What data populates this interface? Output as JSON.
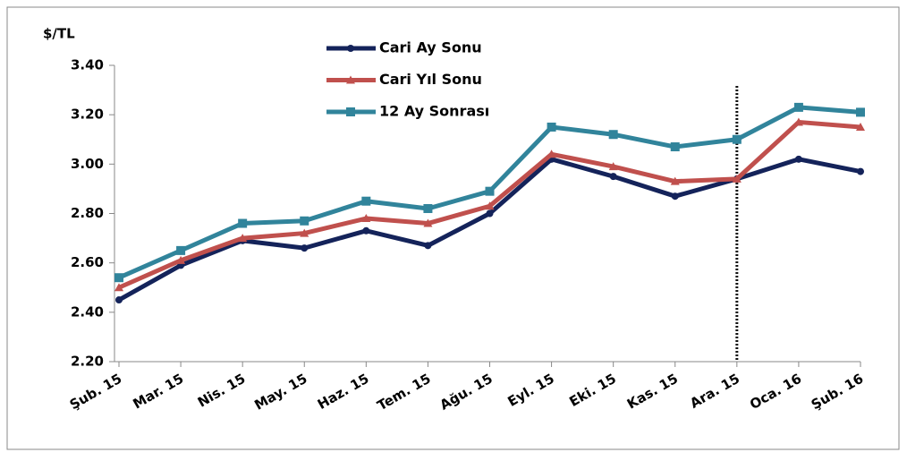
{
  "chart_data": {
    "type": "line",
    "y_label": "$/TL",
    "categories": [
      "Şub. 15",
      "Mar. 15",
      "Nis. 15",
      "May. 15",
      "Haz. 15",
      "Tem. 15",
      "Ağu. 15",
      "Eyl. 15",
      "Eki. 15",
      "Kas. 15",
      "Ara. 15",
      "Oca. 16",
      "Şub. 16"
    ],
    "series": [
      {
        "name": "Cari Ay Sonu",
        "color": "#14235a",
        "marker": "circle",
        "values": [
          2.45,
          2.59,
          2.69,
          2.66,
          2.73,
          2.67,
          2.8,
          3.02,
          2.95,
          2.87,
          2.94,
          3.02,
          2.97
        ]
      },
      {
        "name": "Cari Yıl Sonu",
        "color": "#c0504d",
        "marker": "triangle",
        "values": [
          2.5,
          2.61,
          2.7,
          2.72,
          2.78,
          2.76,
          2.83,
          3.04,
          2.99,
          2.93,
          2.94,
          3.17,
          3.15
        ]
      },
      {
        "name": "12 Ay Sonrası",
        "color": "#31849b",
        "marker": "square",
        "values": [
          2.54,
          2.65,
          2.76,
          2.77,
          2.85,
          2.82,
          2.89,
          3.15,
          3.12,
          3.07,
          3.1,
          3.23,
          3.21
        ]
      }
    ],
    "ylim": [
      2.2,
      3.4
    ],
    "yticks": [
      {
        "value": 2.2,
        "label": "2.20"
      },
      {
        "value": 2.4,
        "label": "2.40"
      },
      {
        "value": 2.6,
        "label": "2.60"
      },
      {
        "value": 2.8,
        "label": "2.80"
      },
      {
        "value": 3.0,
        "label": "3.00"
      },
      {
        "value": 3.2,
        "label": "3.20"
      },
      {
        "value": 3.4,
        "label": "3.40"
      }
    ],
    "grid": false,
    "legend": "top",
    "reference_line": {
      "category": "Ara. 15",
      "style": "dotted"
    }
  }
}
